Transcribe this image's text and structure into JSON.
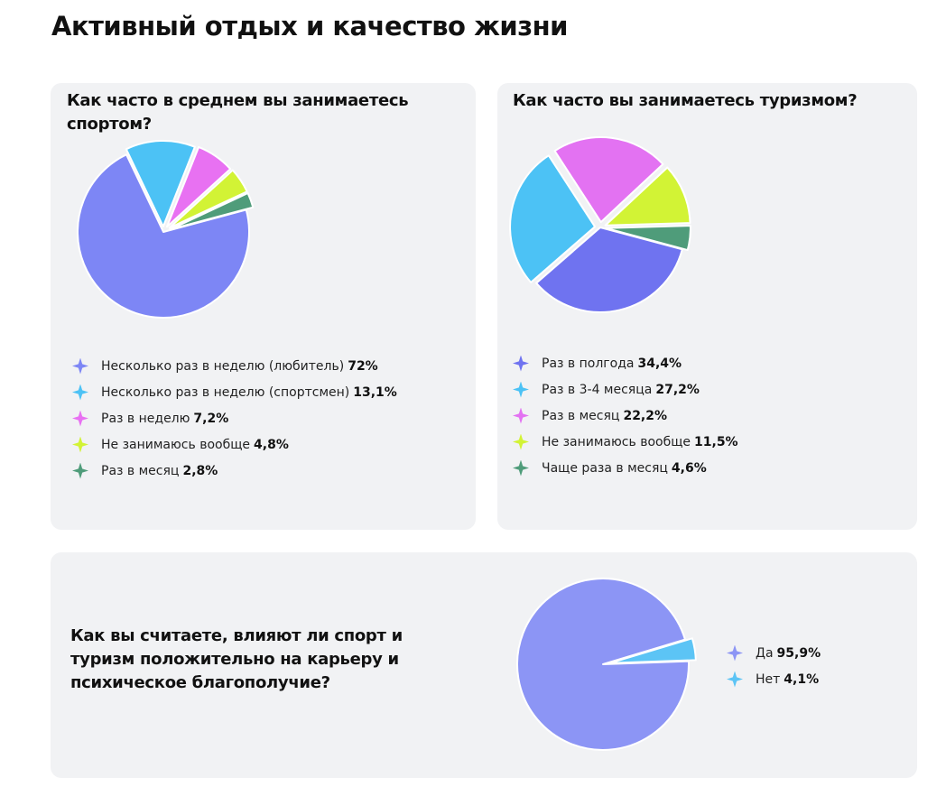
{
  "page": {
    "title": "Активный отдых и качество жизни"
  },
  "chart_data": [
    {
      "id": "sport",
      "type": "pie",
      "title": "Как часто в среднем вы занимаетесь спортом?",
      "categories": [
        "Несколько раз в неделю (любитель)",
        "Несколько раз в неделю (спортсмен)",
        "Раз в неделю",
        "Не занимаюсь вообще ",
        "Раз в месяц"
      ],
      "values": [
        72,
        13.1,
        7.2,
        4.8,
        2.8
      ],
      "value_labels": [
        "72%",
        "13,1%",
        "7,2%",
        "4,8%",
        "2,8%"
      ],
      "colors": [
        "#7d86f5",
        "#4cc2f5",
        "#e871f2",
        "#d2f335",
        "#4f9c7a"
      ],
      "legend": "bottom"
    },
    {
      "id": "tourism",
      "type": "pie",
      "title": "Как часто вы занимаетесь туризмом?",
      "categories": [
        "Раз в полгода",
        "Раз в 3-4 месяца",
        "Раз в месяц",
        "Не занимаюсь вообще",
        "Чаще раза в месяц"
      ],
      "values": [
        34.4,
        27.2,
        22.2,
        11.5,
        4.6
      ],
      "value_labels": [
        "34,4%",
        "27,2%",
        "22,2%",
        "11,5%",
        "4,6%"
      ],
      "colors": [
        "#6f73f0",
        "#4cc2f5",
        "#e372f2",
        "#d2f335",
        "#4f9c7a"
      ],
      "legend": "bottom"
    },
    {
      "id": "career",
      "type": "pie",
      "title": "Как вы считаете, влияют ли спорт и туризм положительно на карьеру и психическое благополучие?",
      "categories": [
        "Да",
        "Нет"
      ],
      "values": [
        95.9,
        4.1
      ],
      "value_labels": [
        "95,9%",
        "4,1%"
      ],
      "colors": [
        "#8c95f5",
        "#5cc4f5"
      ],
      "legend": "right"
    }
  ]
}
